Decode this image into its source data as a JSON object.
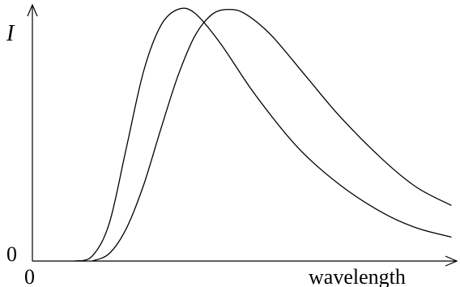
{
  "chart_data": {
    "type": "line",
    "title": "",
    "xlabel": "wavelength",
    "ylabel": "I",
    "x_origin_label": "0",
    "y_origin_label": "0",
    "xlim": [
      0,
      100
    ],
    "ylim": [
      0,
      100
    ],
    "grid": false,
    "legend": "none",
    "series": [
      {
        "color": "#000000",
        "points": [
          [
            10,
            0
          ],
          [
            14,
            2
          ],
          [
            18,
            15
          ],
          [
            22,
            45
          ],
          [
            26,
            75
          ],
          [
            30,
            93
          ],
          [
            34,
            99.5
          ],
          [
            38,
            98
          ],
          [
            44,
            86
          ],
          [
            52,
            66
          ],
          [
            62,
            45
          ],
          [
            72,
            30
          ],
          [
            82,
            19
          ],
          [
            90,
            13
          ],
          [
            98,
            9.5
          ]
        ]
      },
      {
        "color": "#000000",
        "points": [
          [
            14,
            0
          ],
          [
            18,
            3
          ],
          [
            22,
            13
          ],
          [
            26,
            30
          ],
          [
            30,
            52
          ],
          [
            34,
            73
          ],
          [
            38,
            89
          ],
          [
            42,
            97.5
          ],
          [
            46,
            99.5
          ],
          [
            50,
            97.5
          ],
          [
            56,
            89
          ],
          [
            64,
            73
          ],
          [
            72,
            57
          ],
          [
            82,
            40
          ],
          [
            90,
            29
          ],
          [
            98,
            22
          ]
        ]
      }
    ]
  }
}
